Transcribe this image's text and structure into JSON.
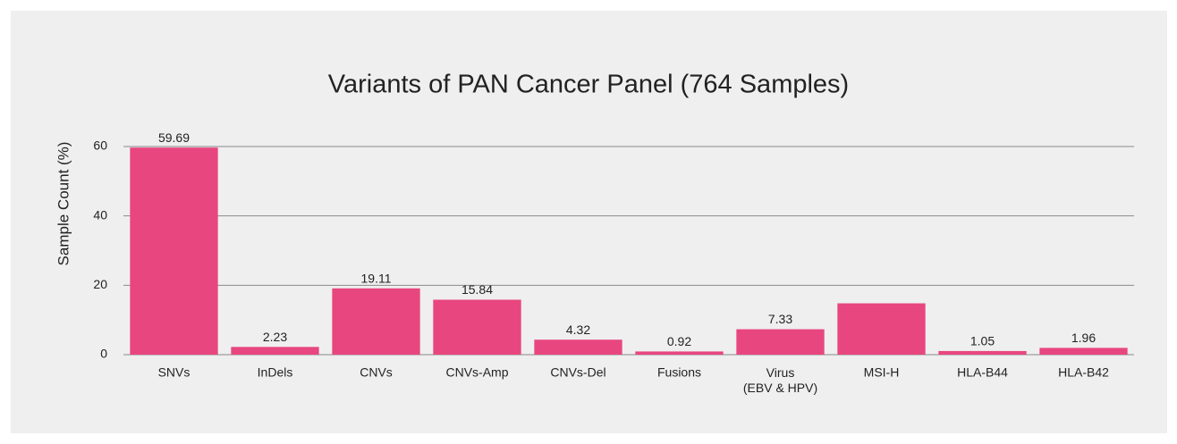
{
  "chart_data": {
    "type": "bar",
    "title": "Variants of PAN Cancer Panel (764 Samples)",
    "y_label": "Sample Count (%)",
    "categories": [
      "SNVs",
      "InDels",
      "CNVs",
      "CNVs-Amp",
      "CNVs-Del",
      "Fusions",
      "Virus\n(EBV & HPV)",
      "MSI-H",
      "HLA-B44",
      "HLA-B42"
    ],
    "values": [
      59.69,
      2.23,
      19.11,
      15.84,
      4.32,
      0.92,
      7.33,
      14.8,
      1.05,
      1.96
    ],
    "value_labels": [
      "59.69",
      "2.23",
      "19.11",
      "15.84",
      "4.32",
      "0.92",
      "7.33",
      null,
      "1.05",
      "1.96"
    ],
    "color": "#e8467f",
    "ylim": [
      0,
      60
    ],
    "yticks": [
      0,
      20,
      40,
      60
    ],
    "grid": true
  }
}
